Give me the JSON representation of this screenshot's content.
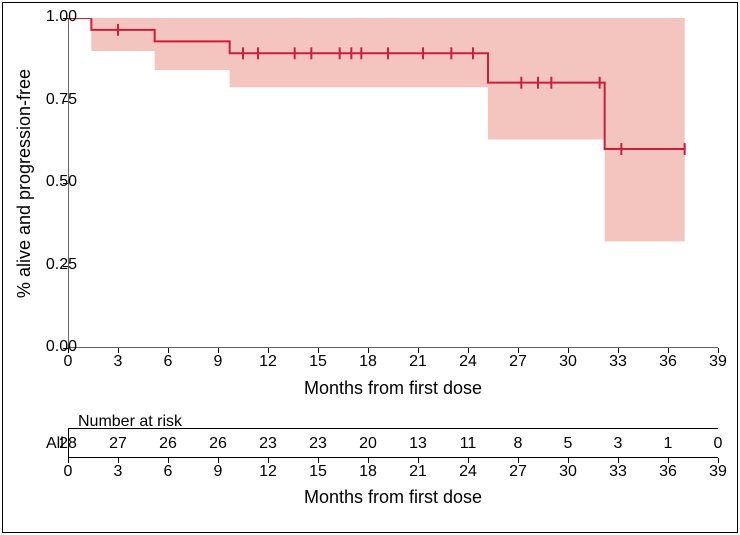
{
  "chart": {
    "type": "kaplan-meier-survival",
    "background_color": "#ffffff",
    "border_color": "#000000",
    "line_color": "#cc1e3b",
    "ci_fill_color": "#f4c5bf",
    "line_width": 2,
    "censor_tick_halfheight_frac": 0.018,
    "x": {
      "label": "Months from first dose",
      "min": 0,
      "max": 39,
      "tick_step": 3,
      "ticks": [
        0,
        3,
        6,
        9,
        12,
        15,
        18,
        21,
        24,
        27,
        30,
        33,
        36,
        39
      ],
      "label_fontsize": 18,
      "tick_fontsize": 16
    },
    "y": {
      "label": "% alive and progression-free",
      "min": 0.0,
      "max": 1.0,
      "ticks": [
        0.0,
        0.25,
        0.5,
        0.75,
        1.0
      ],
      "tick_labels": [
        "0.00",
        "0.25",
        "0.50",
        "0.75",
        "1.00"
      ],
      "label_fontsize": 18,
      "tick_fontsize": 16
    },
    "km": {
      "steps": [
        {
          "t": 0.0,
          "s": 1.0
        },
        {
          "t": 1.4,
          "s": 0.964
        },
        {
          "t": 3.0,
          "s": 0.964
        },
        {
          "t": 5.2,
          "s": 0.929
        },
        {
          "t": 9.7,
          "s": 0.893
        },
        {
          "t": 25.2,
          "s": 0.804
        },
        {
          "t": 32.2,
          "s": 0.603
        }
      ],
      "t_end": 37.0,
      "censor_marks": [
        3.0,
        10.5,
        11.4,
        13.6,
        14.6,
        16.3,
        17.0,
        17.6,
        19.2,
        21.3,
        23.0,
        24.3,
        27.2,
        28.2,
        29.0,
        31.9,
        33.2,
        37.0
      ],
      "ci_steps": [
        {
          "t": 0.0,
          "lo": 1.0,
          "hi": 1.0
        },
        {
          "t": 1.4,
          "lo": 0.9,
          "hi": 1.0
        },
        {
          "t": 5.2,
          "lo": 0.842,
          "hi": 1.0
        },
        {
          "t": 9.7,
          "lo": 0.79,
          "hi": 1.0
        },
        {
          "t": 25.2,
          "lo": 0.632,
          "hi": 1.0
        },
        {
          "t": 32.2,
          "lo": 0.323,
          "hi": 1.0
        }
      ]
    }
  },
  "nar": {
    "title": "Number at risk",
    "row_label": "All",
    "xlabel": "Months from first dose",
    "times": [
      0,
      3,
      6,
      9,
      12,
      15,
      18,
      21,
      24,
      27,
      30,
      33,
      36,
      39
    ],
    "counts": [
      28,
      27,
      26,
      26,
      23,
      23,
      20,
      13,
      11,
      8,
      5,
      3,
      1,
      0
    ]
  }
}
